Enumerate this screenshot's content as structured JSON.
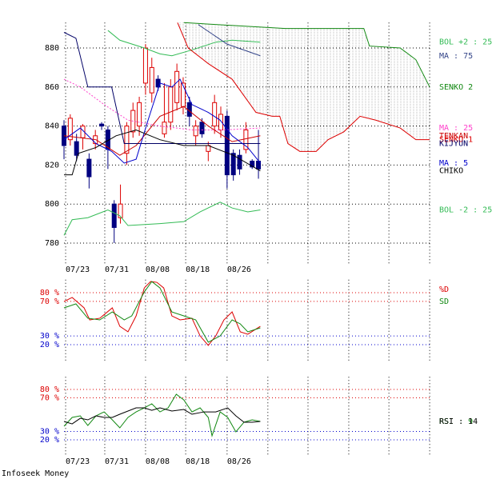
{
  "footer": "Infoseek Money",
  "chart_data": [
    {
      "type": "candlestick",
      "x": [
        0,
        1,
        2,
        3,
        4,
        5,
        6,
        7,
        8,
        9,
        10,
        11,
        12,
        13,
        14,
        15,
        16,
        17,
        18,
        19,
        20,
        21,
        22,
        23,
        24,
        25,
        26,
        27,
        28,
        29,
        30,
        31
      ],
      "open": [
        840,
        833,
        832,
        834,
        823,
        831,
        841,
        838,
        800,
        793,
        826,
        837,
        840,
        862,
        857,
        864,
        836,
        842,
        852,
        850,
        852,
        835,
        842,
        827,
        840,
        838,
        845,
        826,
        825,
        828,
        822,
        822
      ],
      "high": [
        843,
        846,
        836,
        841,
        826,
        838,
        842,
        840,
        802,
        810,
        842,
        852,
        855,
        882,
        875,
        866,
        862,
        864,
        872,
        865,
        855,
        843,
        844,
        832,
        856,
        850,
        848,
        828,
        828,
        842,
        823,
        838
      ],
      "low": [
        823,
        830,
        822,
        828,
        808,
        828,
        838,
        818,
        780,
        790,
        820,
        834,
        835,
        856,
        852,
        858,
        834,
        838,
        848,
        846,
        840,
        830,
        834,
        822,
        836,
        834,
        808,
        812,
        815,
        826,
        818,
        813
      ],
      "close": [
        830,
        844,
        825,
        840,
        814,
        835,
        840,
        828,
        788,
        800,
        840,
        848,
        852,
        880,
        870,
        860,
        842,
        860,
        868,
        862,
        845,
        840,
        836,
        830,
        852,
        846,
        815,
        815,
        818,
        838,
        819,
        818
      ],
      "up_color": "#dd0000",
      "down_color": "#000080",
      "xlim": [
        0,
        58.67
      ],
      "ylim": [
        772,
        893
      ],
      "yticks": [
        780,
        800,
        820,
        840,
        860,
        880
      ],
      "xticks": [
        {
          "value": 0.26,
          "label": "07/23"
        },
        {
          "value": 6.5,
          "label": "07/31"
        },
        {
          "value": 13,
          "label": "08/08"
        },
        {
          "value": 19.4,
          "label": "08/18"
        },
        {
          "value": 26,
          "label": "08/26"
        }
      ],
      "xgrid": [
        0.26,
        6.5,
        13,
        19.4,
        26,
        32.5,
        38.9,
        45.4,
        51.8,
        58.3
      ],
      "grid": true,
      "legend": "end",
      "cloud": {
        "between": [
          2,
          5
        ],
        "hatch": "#aaaaaa"
      },
      "series": [
        {
          "name": "BOL +2 : 25",
          "color": "#33bb55",
          "x": [
            7,
            8.9,
            12.8,
            15.3,
            17.2,
            20.4,
            24.2,
            26.8,
            31.3
          ],
          "values": [
            889,
            884,
            880,
            877,
            876,
            879,
            883,
            884,
            883
          ]
        },
        {
          "name": "MA : 75",
          "color": "#334488",
          "x": [
            21.4,
            26,
            31.3
          ],
          "values": [
            892,
            882,
            876
          ]
        },
        {
          "name": "SENKO 2",
          "color": "#118811",
          "x": [
            19.1,
            35.3,
            47.8,
            48.7,
            53.6,
            56.1,
            58.3
          ],
          "values": [
            893,
            890,
            890,
            881,
            880,
            874,
            860
          ]
        },
        {
          "name": "MA : 25",
          "color": "#ff44cc",
          "dash": true,
          "x": [
            0,
            2.6,
            6.4,
            10.2,
            15.3,
            20.4,
            25.5,
            31.3
          ],
          "values": [
            864,
            860,
            851,
            843,
            840,
            838,
            838,
            839
          ]
        },
        {
          "name": "TENKAN",
          "color": "#cc0000",
          "x": [
            0,
            5.1,
            8.9,
            11.5,
            15.3,
            19.1,
            23,
            26.8,
            31.3
          ],
          "values": [
            835,
            833,
            825,
            830,
            845,
            850,
            840,
            832,
            835
          ]
        },
        {
          "name": "SENKO 1",
          "color": "#dd0000",
          "x": [
            18.1,
            19.8,
            23,
            26.8,
            30.6,
            33.2,
            34.4,
            35.7,
            37.6,
            40.2,
            42.1,
            44.6,
            47.2,
            49.7,
            53.6,
            56.1,
            58.3
          ],
          "values": [
            893,
            880,
            872,
            864,
            847,
            845,
            845,
            831,
            827,
            827,
            833,
            837,
            845,
            843,
            839,
            833,
            833
          ]
        },
        {
          "name": "KIJYUN",
          "color": "#000066",
          "x": [
            0,
            1.9,
            3.8,
            7.6,
            9.6,
            31.3
          ],
          "values": [
            888,
            885,
            860,
            860,
            831,
            831
          ]
        },
        {
          "name": "MA : 5",
          "color": "#0000cc",
          "x": [
            0,
            2.6,
            5.1,
            7.6,
            9.6,
            11.5,
            13.4,
            15.3,
            17.2,
            18.5,
            20.4,
            23,
            24.9,
            26.8,
            29.3,
            31.3
          ],
          "values": [
            833,
            839,
            831,
            827,
            821,
            823,
            843,
            862,
            860,
            864,
            851,
            847,
            843,
            835,
            829,
            821
          ]
        },
        {
          "name": "CHIKO",
          "color": "#000000",
          "x": [
            0,
            1.3,
            2.3,
            5.1,
            8.3,
            11.5,
            15.3,
            19.1,
            23,
            27,
            31.3
          ],
          "values": [
            815,
            815,
            826,
            829,
            835,
            838,
            833,
            830,
            830,
            825,
            817
          ]
        },
        {
          "name": "BOL -2 : 25",
          "color": "#33bb55",
          "x": [
            0,
            1.3,
            3.8,
            7,
            8.9,
            10.2,
            15.3,
            19.1,
            21.7,
            24.9,
            26.8,
            29.3,
            31.3
          ],
          "values": [
            784,
            792,
            793,
            797,
            794,
            789,
            790,
            791,
            796,
            801,
            798,
            796,
            797
          ]
        }
      ]
    },
    {
      "type": "line",
      "xlim": [
        0,
        58.67
      ],
      "ylim": [
        0,
        95
      ],
      "yticks": [
        {
          "value": 80,
          "label": "80 %"
        },
        {
          "value": 70,
          "label": "70 %"
        },
        {
          "value": 30,
          "label": "30 %"
        },
        {
          "value": 20,
          "label": "20 %"
        }
      ],
      "ytick_colors": [
        "#dd0000",
        "#dd0000",
        "#0000cc",
        "#0000cc"
      ],
      "xgrid": [
        0.26,
        6.5,
        13,
        19.4,
        26,
        32.5,
        38.9,
        45.4,
        51.8,
        58.3
      ],
      "grid": true,
      "legend": "upper right",
      "series": [
        {
          "name": "%D",
          "color": "#dd0000",
          "x": [
            0,
            1.3,
            3.2,
            4.1,
            5.7,
            7.7,
            8.9,
            10.2,
            11.5,
            12.8,
            13.8,
            14.8,
            15.9,
            17.2,
            18.5,
            20.4,
            21.7,
            23,
            24.2,
            25.5,
            26.8,
            28.1,
            29.3,
            31.3
          ],
          "values": [
            69.8,
            74.5,
            62.5,
            48.6,
            50.5,
            62.5,
            41.2,
            34.8,
            53.2,
            85.5,
            92.9,
            92,
            85.5,
            53.2,
            48.6,
            50.5,
            30.1,
            19.1,
            30.1,
            48.6,
            57.8,
            34.8,
            32,
            41.2
          ]
        },
        {
          "name": "SD",
          "color": "#118811",
          "x": [
            0,
            1.9,
            3.8,
            5.7,
            7.7,
            9.6,
            10.8,
            12.8,
            14,
            15.3,
            17.2,
            19.1,
            21,
            23,
            24.9,
            26.8,
            28.1,
            29.3,
            31.3
          ],
          "values": [
            62.5,
            67.1,
            50.5,
            48.6,
            57.8,
            48.6,
            53.2,
            80.9,
            92.9,
            85.5,
            57.8,
            53.2,
            48.6,
            22.8,
            30.1,
            48.6,
            44,
            34.8,
            39.4
          ]
        }
      ]
    },
    {
      "type": "line",
      "xlim": [
        0,
        58.67
      ],
      "ylim": [
        0,
        95
      ],
      "yticks": [
        {
          "value": 80,
          "label": "80 %"
        },
        {
          "value": 70,
          "label": "70 %"
        },
        {
          "value": 30,
          "label": "30 %"
        },
        {
          "value": 20,
          "label": "20 %"
        }
      ],
      "ytick_colors": [
        "#dd0000",
        "#dd0000",
        "#0000cc",
        "#0000cc"
      ],
      "xticks": [
        {
          "value": 0.26,
          "label": "07/23"
        },
        {
          "value": 6.5,
          "label": "07/31"
        },
        {
          "value": 13,
          "label": "08/08"
        },
        {
          "value": 19.4,
          "label": "08/18"
        },
        {
          "value": 26,
          "label": "08/26"
        }
      ],
      "xgrid": [
        0.26,
        6.5,
        13,
        19.4,
        26,
        32.5,
        38.9,
        45.4,
        51.8,
        58.3
      ],
      "grid": true,
      "legend": "end",
      "series": [
        {
          "name": "RSI : 9",
          "color": "#118811",
          "x": [
            0,
            1.3,
            2.6,
            3.8,
            5.1,
            6.4,
            7.7,
            8.9,
            10.2,
            11.5,
            12.8,
            14,
            15.3,
            16.6,
            17.9,
            19.1,
            20.4,
            21.7,
            23,
            23.6,
            24.9,
            26.1,
            27.4,
            28.7,
            30,
            31.3
          ],
          "values": [
            36.2,
            46.7,
            48.6,
            37.1,
            48.6,
            53.3,
            43.8,
            34.3,
            46.7,
            53.3,
            58.1,
            62.9,
            53.3,
            58.1,
            74.3,
            67.6,
            53.3,
            58.1,
            46.7,
            24.8,
            53.3,
            46.7,
            29.5,
            41,
            43.8,
            41.9
          ]
        },
        {
          "name": "RSI : 14",
          "color": "#000000",
          "x": [
            0,
            1.3,
            2.6,
            3.8,
            5.1,
            6.4,
            7.7,
            8.9,
            11.5,
            12.8,
            14,
            15.3,
            17.2,
            19.1,
            20.4,
            22.3,
            24.2,
            26.1,
            27.4,
            28.7,
            30,
            31.3
          ],
          "values": [
            41.9,
            39,
            45.7,
            43.8,
            48.6,
            46.7,
            46.7,
            50.5,
            58.1,
            58.1,
            55.2,
            58.1,
            54.3,
            56.2,
            50.5,
            53.3,
            53.3,
            58.1,
            48.6,
            41,
            41,
            41.9
          ]
        }
      ]
    }
  ]
}
